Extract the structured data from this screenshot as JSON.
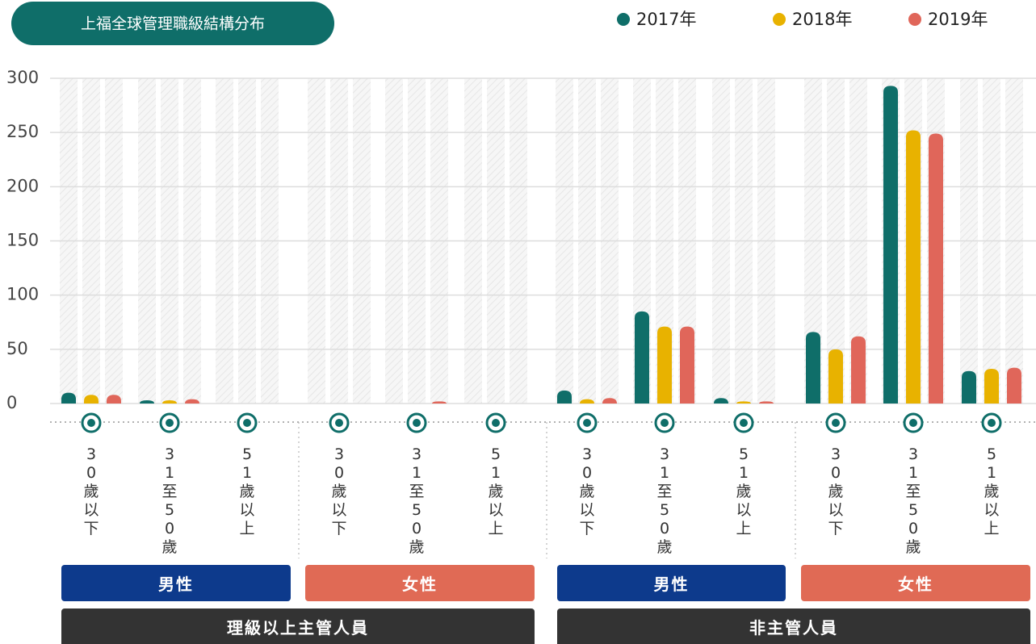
{
  "chart_data": {
    "type": "bar",
    "title": "上福全球管理職級結構分布",
    "categories": [
      "30歲以下",
      "31至50歲",
      "51歲以上",
      "30歲以下",
      "31至50歲",
      "51歲以上",
      "30歲以下",
      "31至50歲",
      "51歲以上",
      "30歲以下",
      "31至50歲",
      "51歲以上"
    ],
    "series": [
      {
        "name": "2017年",
        "color": "#0f6e69",
        "values": [
          10,
          3,
          0,
          0,
          0,
          0,
          12,
          85,
          5,
          66,
          293,
          30
        ]
      },
      {
        "name": "2018年",
        "color": "#e8b200",
        "values": [
          8,
          3,
          0,
          0,
          0,
          0,
          4,
          71,
          2,
          50,
          252,
          32
        ]
      },
      {
        "name": "2019年",
        "color": "#e0665a",
        "values": [
          8,
          4,
          0,
          0,
          2,
          0,
          5,
          71,
          2,
          62,
          249,
          33
        ]
      }
    ],
    "groups": [
      {
        "label": "男性",
        "color": "#0d3a8c"
      },
      {
        "label": "女性",
        "color": "#e06a55"
      },
      {
        "label": "男性",
        "color": "#0d3a8c"
      },
      {
        "label": "女性",
        "color": "#e06a55"
      }
    ],
    "sections": [
      {
        "label": "理級以上主管人員"
      },
      {
        "label": "非主管人員"
      }
    ],
    "ylim": [
      0,
      300
    ],
    "yticks": [
      0,
      50,
      100,
      150,
      200,
      250,
      300
    ],
    "grid": true
  }
}
